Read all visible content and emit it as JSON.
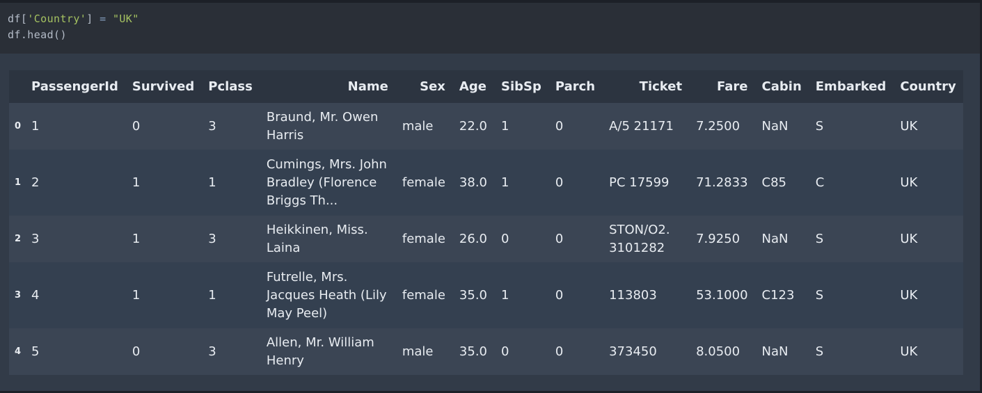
{
  "code": {
    "line1": {
      "ident": "df",
      "open": "[",
      "key": "'Country'",
      "close": "]",
      "op": " = ",
      "value": "\"UK\""
    },
    "line2": "df.head()"
  },
  "table": {
    "columns": [
      "PassengerId",
      "Survived",
      "Pclass",
      "Name",
      "Sex",
      "Age",
      "SibSp",
      "Parch",
      "Ticket",
      "Fare",
      "Cabin",
      "Embarked",
      "Country"
    ],
    "rows": [
      {
        "index": "0",
        "PassengerId": "1",
        "Survived": "0",
        "Pclass": "3",
        "Name": "Braund, Mr. Owen Harris",
        "Sex": "male",
        "Age": "22.0",
        "SibSp": "1",
        "Parch": "0",
        "Ticket": "A/5 21171",
        "Fare": "7.2500",
        "Cabin": "NaN",
        "Embarked": "S",
        "Country": "UK"
      },
      {
        "index": "1",
        "PassengerId": "2",
        "Survived": "1",
        "Pclass": "1",
        "Name": "Cumings, Mrs. John Bradley (Florence Briggs Th...",
        "Sex": "female",
        "Age": "38.0",
        "SibSp": "1",
        "Parch": "0",
        "Ticket": "PC 17599",
        "Fare": "71.2833",
        "Cabin": "C85",
        "Embarked": "C",
        "Country": "UK"
      },
      {
        "index": "2",
        "PassengerId": "3",
        "Survived": "1",
        "Pclass": "3",
        "Name": "Heikkinen, Miss. Laina",
        "Sex": "female",
        "Age": "26.0",
        "SibSp": "0",
        "Parch": "0",
        "Ticket": "STON/O2. 3101282",
        "Fare": "7.9250",
        "Cabin": "NaN",
        "Embarked": "S",
        "Country": "UK"
      },
      {
        "index": "3",
        "PassengerId": "4",
        "Survived": "1",
        "Pclass": "1",
        "Name": "Futrelle, Mrs. Jacques Heath (Lily May Peel)",
        "Sex": "female",
        "Age": "35.0",
        "SibSp": "1",
        "Parch": "0",
        "Ticket": "113803",
        "Fare": "53.1000",
        "Cabin": "C123",
        "Embarked": "S",
        "Country": "UK"
      },
      {
        "index": "4",
        "PassengerId": "5",
        "Survived": "0",
        "Pclass": "3",
        "Name": "Allen, Mr. William Henry",
        "Sex": "male",
        "Age": "35.0",
        "SibSp": "0",
        "Parch": "0",
        "Ticket": "373450",
        "Fare": "8.0500",
        "Cabin": "NaN",
        "Embarked": "S",
        "Country": "UK"
      }
    ]
  },
  "colors": {
    "background": "#323b48",
    "code_cell": "#2a2f37",
    "string": "#a5c261",
    "header_row": "#2c3440",
    "row_odd": "#3b4554",
    "row_even": "#344050",
    "text": "#e8ecf1"
  }
}
